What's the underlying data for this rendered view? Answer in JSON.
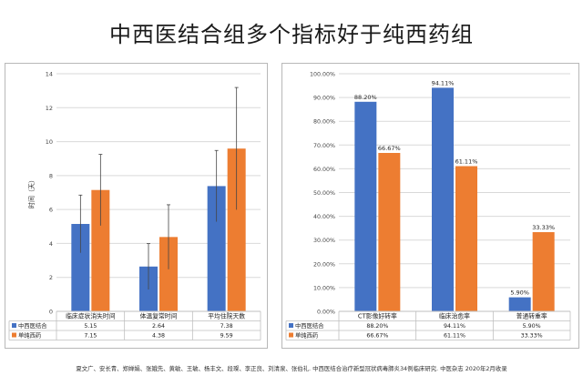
{
  "title": "中西医结合组多个指标好于纯西药组",
  "citation": "夏文广、安长青、郑婵娟、张娥先、黄敏、王敏、杨丰文、段璨、李正良、刘清泉、张伯礼. 中西医结合治疗新型冠状病毒肺炎34例临床研究. 中医杂志 2020年2月收录",
  "colors": {
    "series1": "#4472C4",
    "series2": "#ED7D31"
  },
  "chart_data": [
    {
      "type": "bar",
      "ylabel": "时间（天）",
      "ylim": [
        0,
        14
      ],
      "yticks": [
        "0",
        "2",
        "4",
        "6",
        "8",
        "10",
        "12",
        "14"
      ],
      "categories": [
        "临床症状消失时间",
        "体温复常时间",
        "平均住院天数"
      ],
      "series": [
        {
          "name": "中西医结合",
          "values": [
            5.15,
            2.64,
            7.38
          ],
          "value_labels": [
            "5.15",
            "2.64",
            "7.38"
          ],
          "error": [
            1.7,
            1.35,
            2.1
          ]
        },
        {
          "name": "单纯西药",
          "values": [
            7.15,
            4.38,
            9.59
          ],
          "value_labels": [
            "7.15",
            "4.38",
            "9.59"
          ],
          "error": [
            2.1,
            1.9,
            3.6
          ]
        }
      ],
      "grid": true,
      "legend": "data-table"
    },
    {
      "type": "bar",
      "ylim": [
        0,
        100
      ],
      "yticks": [
        "0.00%",
        "10.00%",
        "20.00%",
        "30.00%",
        "40.00%",
        "50.00%",
        "60.00%",
        "70.00%",
        "80.00%",
        "90.00%",
        "100.00%"
      ],
      "categories": [
        "CT影像好转率",
        "临床治愈率",
        "普通转重率"
      ],
      "series": [
        {
          "name": "中西医结合",
          "values": [
            88.2,
            94.11,
            5.9
          ],
          "value_labels": [
            "88.20%",
            "94.11%",
            "5.90%"
          ],
          "bar_labels": [
            "88.20%",
            "94.11%",
            "5.90%"
          ]
        },
        {
          "name": "单纯西药",
          "values": [
            66.67,
            61.11,
            33.33
          ],
          "value_labels": [
            "66.67%",
            "61.11%",
            "33.33%"
          ],
          "bar_labels": [
            "66.67%",
            "61.11%",
            "33.33%"
          ]
        }
      ],
      "grid": true,
      "legend": "data-table"
    }
  ]
}
